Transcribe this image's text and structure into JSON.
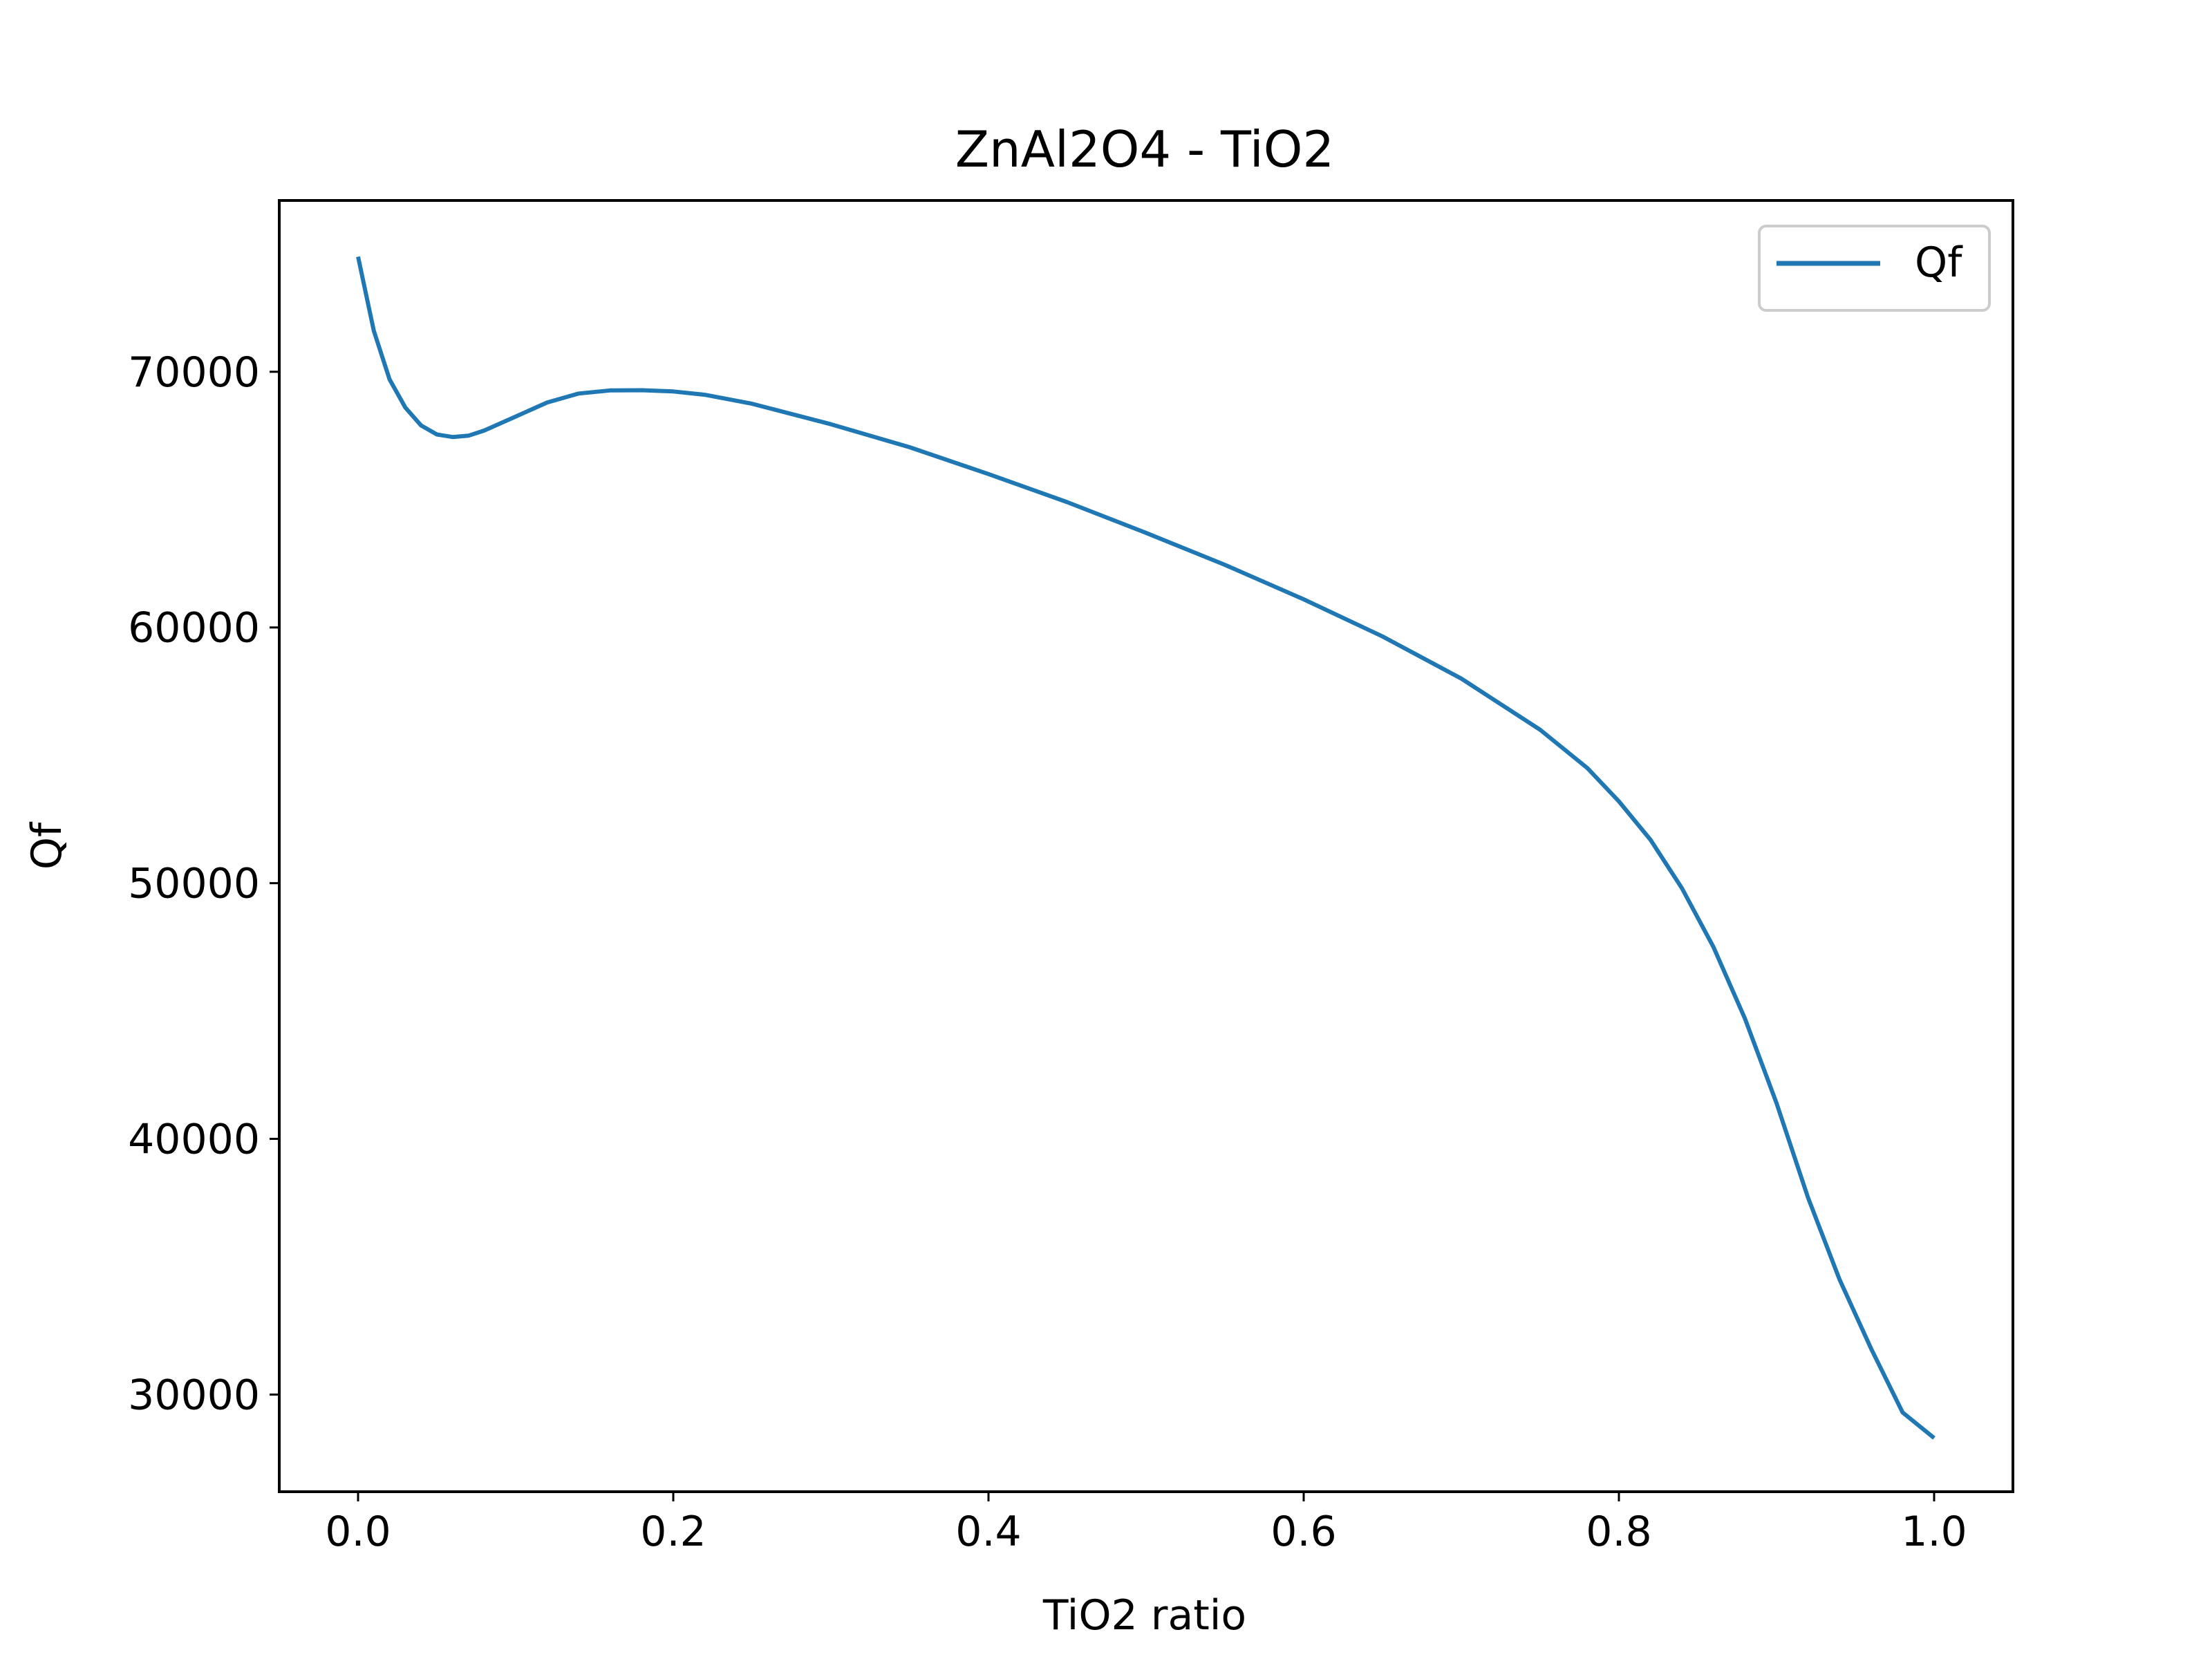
{
  "chart_data": {
    "type": "line",
    "title": "ZnAl2O4 - TiO2",
    "xlabel": "TiO2 ratio",
    "ylabel": "Qf",
    "xlim": [
      -0.05,
      1.05
    ],
    "ylim": [
      26200,
      76700
    ],
    "xticks": [
      0.0,
      0.2,
      0.4,
      0.6,
      0.8,
      1.0
    ],
    "xtick_labels": [
      "0.0",
      "0.2",
      "0.4",
      "0.6",
      "0.8",
      "1.0"
    ],
    "yticks": [
      30000,
      40000,
      50000,
      60000,
      70000
    ],
    "ytick_labels": [
      "30000",
      "40000",
      "50000",
      "60000",
      "70000"
    ],
    "grid": false,
    "legend": {
      "placement": "top-right",
      "entries": [
        "Qf"
      ]
    },
    "series": [
      {
        "name": "Qf",
        "color": "#1f77b4",
        "x": [
          0.0,
          0.01,
          0.02,
          0.03,
          0.04,
          0.05,
          0.06,
          0.07,
          0.08,
          0.1,
          0.12,
          0.14,
          0.16,
          0.18,
          0.2,
          0.22,
          0.25,
          0.3,
          0.35,
          0.4,
          0.45,
          0.5,
          0.55,
          0.6,
          0.65,
          0.7,
          0.75,
          0.78,
          0.8,
          0.82,
          0.84,
          0.86,
          0.88,
          0.9,
          0.92,
          0.94,
          0.96,
          0.98,
          1.0
        ],
        "y": [
          74500,
          71600,
          69700,
          68600,
          67900,
          67550,
          67450,
          67500,
          67700,
          68250,
          68800,
          69150,
          69270,
          69280,
          69230,
          69100,
          68750,
          67950,
          67050,
          66000,
          64900,
          63700,
          62450,
          61100,
          59650,
          58000,
          56000,
          54500,
          53200,
          51700,
          49800,
          47500,
          44700,
          41400,
          37700,
          34500,
          31800,
          29300,
          28300
        ]
      }
    ]
  }
}
